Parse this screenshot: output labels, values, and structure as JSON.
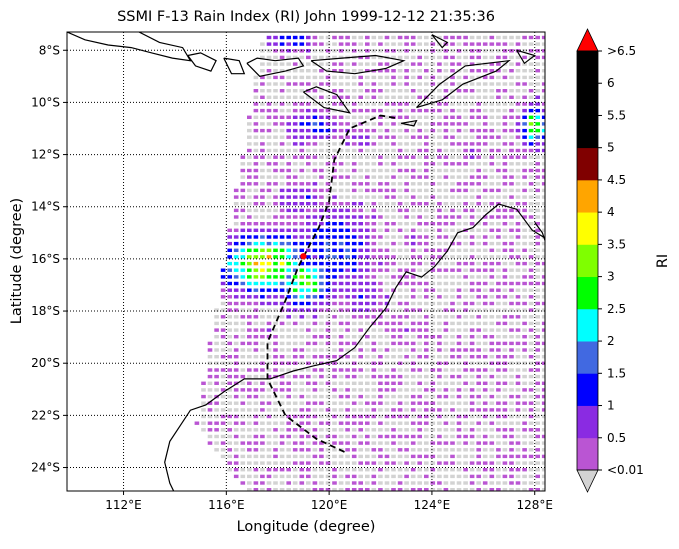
{
  "chart_data": {
    "type": "heatmap",
    "title": "SSMI F-13 Rain Index (RI) John 1999-12-12 21:35:36",
    "xlabel": "Longitude (degree)",
    "ylabel": "Latitude (degree)",
    "xlim": [
      109.8,
      128.4
    ],
    "ylim": [
      -24.9,
      -7.3
    ],
    "xticks": [
      {
        "value": 112,
        "label": "112°E"
      },
      {
        "value": 116,
        "label": "116°E"
      },
      {
        "value": 120,
        "label": "120°E"
      },
      {
        "value": 124,
        "label": "124°E"
      },
      {
        "value": 128,
        "label": "128°E"
      }
    ],
    "yticks": [
      {
        "value": -8,
        "label": "8°S"
      },
      {
        "value": -10,
        "label": "10°S"
      },
      {
        "value": -12,
        "label": "12°S"
      },
      {
        "value": -14,
        "label": "14°S"
      },
      {
        "value": -16,
        "label": "16°S"
      },
      {
        "value": -18,
        "label": "18°S"
      },
      {
        "value": -20,
        "label": "20°S"
      },
      {
        "value": -22,
        "label": "22°S"
      },
      {
        "value": -24,
        "label": "24°S"
      }
    ],
    "grid": "dotted",
    "colorbar": {
      "label": "RI",
      "under_label": "<0.01",
      "over_label": ">6.5",
      "under_color": "#d3d3d3",
      "over_color": "#ff0000",
      "boundaries": [
        0.01,
        0.5,
        1,
        1.5,
        2,
        2.5,
        3,
        3.5,
        4,
        4.5,
        5,
        5.5,
        6,
        6.5
      ],
      "tick_labels": [
        "0.5",
        "1",
        "1.5",
        "2",
        "2.5",
        "3",
        "3.5",
        "4",
        "4.5",
        "5",
        "5.5",
        "6"
      ],
      "colors": [
        "#ba55d3",
        "#8a2be2",
        "#0000ff",
        "#4169e1",
        "#00ffff",
        "#00ff00",
        "#7fff00",
        "#ffff00",
        "#ffa500",
        "#800000",
        "#000000",
        "#000000",
        "#000000"
      ]
    },
    "swath": {
      "boundary": [
        [
          117.2,
          -7.0
        ],
        [
          128.6,
          -7.0
        ],
        [
          128.6,
          -25.0
        ],
        [
          116.8,
          -25.0
        ],
        [
          114.8,
          -22.4
        ],
        [
          117.5,
          -7.0
        ]
      ]
    },
    "rain_cells": [
      {
        "lon": 117.5,
        "lat": -16.2,
        "rlon": 1.8,
        "rlat": 1.2,
        "peak": 3.7
      },
      {
        "lon": 119.0,
        "lat": -16.9,
        "rlon": 1.2,
        "rlat": 1.0,
        "peak": 3.0
      },
      {
        "lon": 120.2,
        "lat": -15.6,
        "rlon": 1.6,
        "rlat": 1.7,
        "peak": 1.6
      },
      {
        "lon": 118.8,
        "lat": -13.7,
        "rlon": 1.0,
        "rlat": 0.7,
        "peak": 1.1
      },
      {
        "lon": 121.3,
        "lat": -17.4,
        "rlon": 1.0,
        "rlat": 1.0,
        "peak": 0.9
      },
      {
        "lon": 128.0,
        "lat": -10.9,
        "rlon": 0.6,
        "rlat": 0.8,
        "peak": 3.1
      },
      {
        "lon": 119.4,
        "lat": -10.9,
        "rlon": 1.2,
        "rlat": 0.7,
        "peak": 1.3
      },
      {
        "lon": 121.2,
        "lat": -11.4,
        "rlon": 0.6,
        "rlat": 0.6,
        "peak": 0.7
      },
      {
        "lon": 118.5,
        "lat": -7.6,
        "rlon": 1.0,
        "rlat": 0.5,
        "peak": 1.3
      },
      {
        "lon": 123.2,
        "lat": -15.3,
        "rlon": 0.6,
        "rlat": 0.7,
        "peak": 0.5
      },
      {
        "lon": 125.5,
        "lat": -11.9,
        "rlon": 0.5,
        "rlat": 0.5,
        "peak": 0.6
      },
      {
        "lon": 117.3,
        "lat": -18.9,
        "rlon": 0.6,
        "rlat": 0.4,
        "peak": 0.5
      },
      {
        "lon": 122.6,
        "lat": -18.8,
        "rlon": 0.6,
        "rlat": 0.5,
        "peak": 0.5
      }
    ],
    "track": [
      [
        120.6,
        -23.4
      ],
      [
        119.5,
        -22.9
      ],
      [
        118.3,
        -22.0
      ],
      [
        117.6,
        -20.6
      ],
      [
        117.6,
        -19.2
      ],
      [
        118.3,
        -17.6
      ],
      [
        118.8,
        -16.3
      ],
      [
        119.6,
        -14.8
      ],
      [
        120.0,
        -13.8
      ],
      [
        120.2,
        -12.2
      ],
      [
        120.8,
        -11.0
      ],
      [
        122.0,
        -10.5
      ],
      [
        122.6,
        -10.6
      ]
    ],
    "storm_center": {
      "lon": 119.0,
      "lat": -15.9
    },
    "coastlines": [
      [
        [
          109.8,
          -7.3
        ],
        [
          110.5,
          -7.6
        ],
        [
          111.4,
          -7.8
        ],
        [
          112.3,
          -7.9
        ],
        [
          113.1,
          -8.1
        ],
        [
          113.9,
          -8.3
        ],
        [
          114.6,
          -8.4
        ],
        [
          114.3,
          -7.9
        ],
        [
          113.4,
          -7.7
        ],
        [
          112.6,
          -7.3
        ]
      ],
      [
        [
          114.5,
          -8.2
        ],
        [
          114.8,
          -8.6
        ],
        [
          115.4,
          -8.8
        ],
        [
          115.6,
          -8.4
        ],
        [
          115.0,
          -8.1
        ],
        [
          114.5,
          -8.2
        ]
      ],
      [
        [
          115.9,
          -8.3
        ],
        [
          116.2,
          -8.9
        ],
        [
          116.7,
          -8.9
        ],
        [
          116.5,
          -8.4
        ],
        [
          115.9,
          -8.3
        ]
      ],
      [
        [
          116.8,
          -8.5
        ],
        [
          117.3,
          -9.0
        ],
        [
          118.3,
          -8.8
        ],
        [
          119.0,
          -8.6
        ],
        [
          118.8,
          -8.3
        ],
        [
          117.9,
          -8.4
        ],
        [
          117.2,
          -8.3
        ],
        [
          116.8,
          -8.5
        ]
      ],
      [
        [
          119.3,
          -8.4
        ],
        [
          119.9,
          -8.8
        ],
        [
          121.0,
          -8.9
        ],
        [
          122.2,
          -8.7
        ],
        [
          122.9,
          -8.4
        ],
        [
          121.8,
          -8.2
        ],
        [
          120.5,
          -8.3
        ],
        [
          119.3,
          -8.4
        ]
      ],
      [
        [
          119.0,
          -9.6
        ],
        [
          119.8,
          -10.2
        ],
        [
          120.8,
          -10.4
        ],
        [
          120.3,
          -9.7
        ],
        [
          119.5,
          -9.4
        ],
        [
          119.0,
          -9.6
        ]
      ],
      [
        [
          123.4,
          -10.2
        ],
        [
          124.3,
          -9.3
        ],
        [
          125.3,
          -8.6
        ],
        [
          127.0,
          -8.4
        ],
        [
          126.5,
          -8.8
        ],
        [
          125.2,
          -9.3
        ],
        [
          124.4,
          -9.9
        ],
        [
          123.4,
          -10.2
        ]
      ],
      [
        [
          122.8,
          -10.8
        ],
        [
          123.4,
          -10.7
        ],
        [
          123.3,
          -10.9
        ],
        [
          122.8,
          -10.8
        ]
      ],
      [
        [
          124.0,
          -7.4
        ],
        [
          124.6,
          -7.7
        ],
        [
          124.4,
          -7.9
        ],
        [
          124.0,
          -7.4
        ]
      ],
      [
        [
          127.3,
          -8.0
        ],
        [
          128.0,
          -8.2
        ],
        [
          127.6,
          -8.5
        ],
        [
          127.3,
          -8.0
        ]
      ],
      [
        [
          128.4,
          -15.2
        ],
        [
          127.9,
          -14.9
        ],
        [
          127.3,
          -14.1
        ],
        [
          126.6,
          -13.9
        ],
        [
          126.1,
          -14.3
        ],
        [
          125.6,
          -14.8
        ],
        [
          125.0,
          -15.0
        ],
        [
          124.6,
          -15.7
        ],
        [
          124.1,
          -16.3
        ],
        [
          123.6,
          -16.7
        ],
        [
          123.0,
          -16.5
        ],
        [
          122.6,
          -17.1
        ],
        [
          122.2,
          -17.9
        ],
        [
          121.6,
          -18.6
        ],
        [
          121.0,
          -19.4
        ],
        [
          120.3,
          -19.9
        ],
        [
          119.4,
          -20.1
        ],
        [
          118.6,
          -20.3
        ],
        [
          117.7,
          -20.6
        ],
        [
          116.7,
          -20.6
        ],
        [
          115.9,
          -21.1
        ],
        [
          115.2,
          -21.6
        ],
        [
          114.6,
          -21.8
        ],
        [
          114.2,
          -22.4
        ],
        [
          113.8,
          -23.0
        ],
        [
          113.6,
          -23.8
        ],
        [
          113.8,
          -24.6
        ],
        [
          114.0,
          -25.0
        ]
      ],
      [
        [
          128.0,
          -14.6
        ],
        [
          128.3,
          -15.0
        ],
        [
          128.4,
          -15.3
        ]
      ]
    ]
  }
}
